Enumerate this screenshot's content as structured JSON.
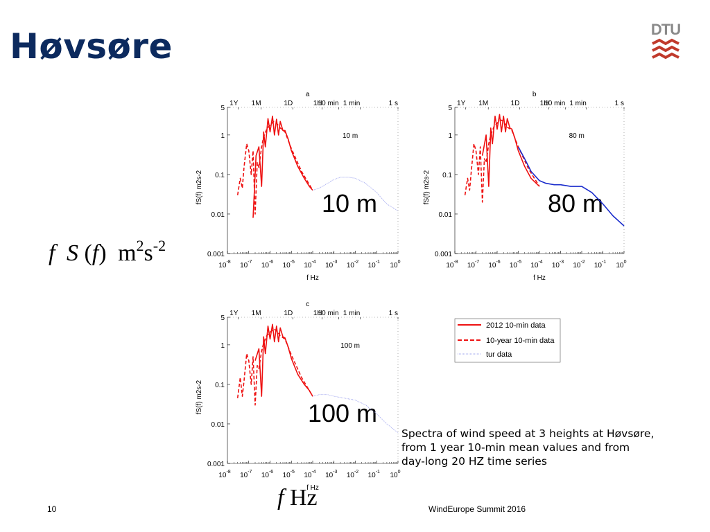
{
  "slide": {
    "title": "Høvsøre",
    "logo_text": "DTU",
    "y_axis_label": {
      "f": "f",
      "S": "S",
      "m": "m",
      "m_exp": "2",
      "s": "s",
      "s_exp": "-2"
    },
    "x_axis_label": {
      "f": "f",
      "unit": "Hz"
    },
    "caption": "Spectra of wind speed at 3 heights at Høvsøre,\nfrom 1 year 10-min mean values and from\nday-long 20 HZ time series",
    "page_number": "10",
    "footer": "WindEurope Summit 2016"
  },
  "colors": {
    "title": "#0c2a5e",
    "red_series": "#ee1111",
    "blue_series": "#1a2ccc",
    "turb_series": "#9aa0ee",
    "logo_red": "#c0392b",
    "logo_gray": "#8a8a8a"
  },
  "legend": {
    "entries": [
      "2012 10-min data",
      "10-year 10-min data",
      "tur data"
    ]
  },
  "chart_data": [
    {
      "type": "line",
      "panel": "a",
      "height_label": "10 m",
      "big_label": "10 m",
      "xlabel": "f Hz",
      "ylabel": "fS(f) m2s-2",
      "x_scale": "log",
      "y_scale": "log",
      "xlim": [
        1e-08,
        1
      ],
      "ylim": [
        0.001,
        5
      ],
      "x_tick_labels": [
        {
          "base": "10",
          "exp": "-8"
        },
        {
          "base": "10",
          "exp": "-7"
        },
        {
          "base": "10",
          "exp": "-6"
        },
        {
          "base": "10",
          "exp": "-5"
        },
        {
          "base": "10",
          "exp": "-4"
        },
        {
          "base": "10",
          "exp": "-3"
        },
        {
          "base": "10",
          "exp": "-2"
        },
        {
          "base": "10",
          "exp": "-1"
        },
        {
          "base": "10",
          "exp": "0"
        }
      ],
      "y_tick_labels": [
        "5",
        "1",
        "0.1",
        "0.01",
        "0.001"
      ],
      "top_ticks": [
        "1Y",
        "1M",
        "1D",
        "1H",
        "10 min",
        "1 min",
        "1 s"
      ],
      "series": [
        {
          "name": "2012 10-min data",
          "style": "solid-red",
          "x": [
            1.6e-07,
            2.2e-07,
            3e-07,
            4e-07,
            5e-07,
            6e-07,
            8e-07,
            1e-06,
            1.3e-06,
            1.6e-06,
            2e-06,
            2.5e-06,
            3e-06,
            4e-06,
            5e-06,
            7e-06,
            1e-05,
            2e-05,
            4e-05,
            7e-05,
            0.0001
          ],
          "y": [
            0.008,
            0.3,
            0.5,
            0.05,
            1.2,
            0.5,
            2.6,
            1.2,
            3.0,
            1.0,
            2.5,
            1.0,
            2.2,
            1.3,
            1.3,
            0.8,
            0.4,
            0.16,
            0.08,
            0.05,
            0.04
          ]
        },
        {
          "name": "10-year 10-min data",
          "style": "dashed-red",
          "x": [
            3e-08,
            4e-08,
            5e-08,
            6e-08,
            8e-08,
            1e-07,
            1.3e-07,
            1.6e-07,
            2e-07,
            2.5e-07,
            3e-07,
            4e-07,
            5e-07,
            7e-07,
            1e-06,
            1.5e-06,
            2e-06,
            3e-06,
            5e-06,
            1e-05,
            3e-05,
            0.0001
          ],
          "y": [
            0.03,
            0.08,
            0.045,
            0.15,
            0.6,
            0.4,
            0.1,
            0.4,
            0.01,
            0.2,
            0.15,
            0.5,
            0.9,
            1.4,
            1.8,
            2.2,
            2.0,
            1.5,
            1.2,
            0.45,
            0.12,
            0.04
          ]
        },
        {
          "name": "tur data",
          "style": "dotted-blue",
          "x": [
            0.0001,
            0.0002,
            0.0005,
            0.001,
            0.002,
            0.005,
            0.01,
            0.03,
            0.1,
            0.3,
            1
          ],
          "y": [
            0.04,
            0.045,
            0.06,
            0.075,
            0.085,
            0.085,
            0.08,
            0.06,
            0.035,
            0.018,
            0.012
          ]
        }
      ]
    },
    {
      "type": "line",
      "panel": "b",
      "height_label": "80 m",
      "big_label": "80 m",
      "xlabel": "f Hz",
      "ylabel": "fS(f) m2s-2",
      "x_scale": "log",
      "y_scale": "log",
      "xlim": [
        1e-08,
        1
      ],
      "ylim": [
        0.001,
        5
      ],
      "x_tick_labels": [
        {
          "base": "10",
          "exp": "-8"
        },
        {
          "base": "10",
          "exp": "-7"
        },
        {
          "base": "10",
          "exp": "-6"
        },
        {
          "base": "10",
          "exp": "-5"
        },
        {
          "base": "10",
          "exp": "-4"
        },
        {
          "base": "10",
          "exp": "-3"
        },
        {
          "base": "10",
          "exp": "-2"
        },
        {
          "base": "10",
          "exp": "-1"
        },
        {
          "base": "10",
          "exp": "0"
        }
      ],
      "y_tick_labels": [
        "5",
        "1",
        "0.1",
        "0.01",
        "0.001"
      ],
      "top_ticks": [
        "1Y",
        "1M",
        "1D",
        "1H",
        "10 min",
        "1 min",
        "1 s"
      ],
      "series": [
        {
          "name": "2012 10-min data",
          "style": "solid-red",
          "x": [
            2e-07,
            3e-07,
            4e-07,
            5e-07,
            6e-07,
            8e-07,
            1e-06,
            1.3e-06,
            1.6e-06,
            2e-06,
            2.5e-06,
            3e-06,
            4e-06,
            5e-06,
            7e-06,
            1e-05,
            2e-05,
            4e-05,
            7e-05,
            0.0001
          ],
          "y": [
            0.3,
            1.0,
            0.05,
            1.5,
            0.6,
            3.0,
            1.4,
            3.3,
            1.2,
            3.0,
            1.2,
            2.6,
            1.5,
            1.4,
            0.8,
            0.4,
            0.16,
            0.08,
            0.06,
            0.05
          ]
        },
        {
          "name": "10-year 10-min data",
          "style": "dashed-red",
          "x": [
            3e-08,
            4e-08,
            5e-08,
            6e-08,
            8e-08,
            1e-07,
            1.3e-07,
            1.6e-07,
            2e-07,
            2.5e-07,
            3e-07,
            4e-07,
            5e-07,
            7e-07,
            1e-06,
            1.5e-06,
            2e-06,
            3e-06,
            5e-06,
            1e-05,
            3e-05,
            0.0001
          ],
          "y": [
            0.03,
            0.08,
            0.04,
            0.12,
            0.6,
            0.4,
            0.1,
            0.5,
            0.02,
            0.25,
            0.2,
            0.6,
            1.0,
            1.6,
            2.0,
            2.4,
            2.2,
            1.6,
            1.3,
            0.5,
            0.14,
            0.05
          ]
        },
        {
          "name": "tur data",
          "style": "solid-blue",
          "x": [
            1e-05,
            2e-05,
            4e-05,
            0.0001,
            0.0002,
            0.0005,
            0.001,
            0.003,
            0.01,
            0.03,
            0.1,
            0.3,
            1
          ],
          "y": [
            0.5,
            0.25,
            0.12,
            0.07,
            0.06,
            0.055,
            0.055,
            0.05,
            0.05,
            0.035,
            0.018,
            0.009,
            0.005
          ]
        }
      ]
    },
    {
      "type": "line",
      "panel": "c",
      "height_label": "100 m",
      "big_label": "100 m",
      "xlabel": "f Hz",
      "ylabel": "fS(f) m2s-2",
      "x_scale": "log",
      "y_scale": "log",
      "xlim": [
        1e-08,
        1
      ],
      "ylim": [
        0.001,
        5
      ],
      "x_tick_labels": [
        {
          "base": "10",
          "exp": "-8"
        },
        {
          "base": "10",
          "exp": "-7"
        },
        {
          "base": "10",
          "exp": "-6"
        },
        {
          "base": "10",
          "exp": "-5"
        },
        {
          "base": "10",
          "exp": "-4"
        },
        {
          "base": "10",
          "exp": "-3"
        },
        {
          "base": "10",
          "exp": "-2"
        },
        {
          "base": "10",
          "exp": "-1"
        },
        {
          "base": "10",
          "exp": "0"
        }
      ],
      "y_tick_labels": [
        "5",
        "1",
        "0.1",
        "0.01",
        "0.001"
      ],
      "top_ticks": [
        "1Y",
        "1M",
        "1D",
        "1H",
        "10 min",
        "1 min",
        "1 s"
      ],
      "series": [
        {
          "name": "2012 10-min data",
          "style": "solid-red",
          "x": [
            2e-07,
            3e-07,
            4e-07,
            5e-07,
            6e-07,
            8e-07,
            1e-06,
            1.3e-06,
            1.6e-06,
            2e-06,
            2.5e-06,
            3e-06,
            4e-06,
            5e-06,
            7e-06,
            1e-05,
            2e-05,
            4e-05,
            7e-05,
            0.0001
          ],
          "y": [
            0.4,
            0.8,
            0.05,
            1.6,
            0.6,
            3.0,
            1.4,
            3.3,
            1.2,
            3.0,
            1.2,
            2.7,
            1.6,
            1.5,
            0.9,
            0.45,
            0.18,
            0.1,
            0.07,
            0.05
          ]
        },
        {
          "name": "10-year 10-min data",
          "style": "dashed-red",
          "x": [
            3e-08,
            4e-08,
            5e-08,
            6e-08,
            8e-08,
            1e-07,
            1.3e-07,
            1.6e-07,
            2e-07,
            2.5e-07,
            3e-07,
            4e-07,
            5e-07,
            7e-07,
            1e-06,
            1.5e-06,
            2e-06,
            3e-06,
            5e-06,
            1e-05,
            3e-05,
            0.0001
          ],
          "y": [
            0.045,
            0.15,
            0.05,
            0.12,
            0.6,
            0.4,
            0.1,
            0.5,
            0.03,
            0.3,
            0.25,
            0.7,
            1.1,
            1.7,
            2.1,
            2.5,
            2.3,
            1.7,
            1.4,
            0.55,
            0.15,
            0.05
          ]
        },
        {
          "name": "tur data",
          "style": "dotted-blue",
          "x": [
            0.0001,
            0.0002,
            0.0005,
            0.001,
            0.003,
            0.01,
            0.03,
            0.1,
            0.3,
            1
          ],
          "y": [
            0.05,
            0.055,
            0.055,
            0.05,
            0.045,
            0.04,
            0.03,
            0.018,
            0.01,
            0.006
          ]
        }
      ]
    }
  ]
}
